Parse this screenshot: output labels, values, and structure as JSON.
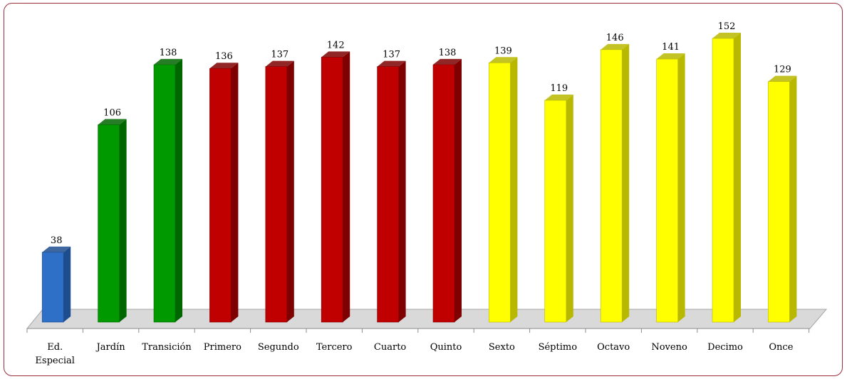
{
  "chart_data": {
    "type": "bar",
    "title": "",
    "xlabel": "",
    "ylabel": "",
    "categories": [
      "Ed. Especial",
      "Jardín",
      "Transición",
      "Primero",
      "Segundo",
      "Tercero",
      "Cuarto",
      "Quinto",
      "Sexto",
      "Séptimo",
      "Octavo",
      "Noveno",
      "Decimo",
      "Once"
    ],
    "category_lines": [
      [
        "Ed.",
        "Especial"
      ],
      [
        "Jardín"
      ],
      [
        "Transición"
      ],
      [
        "Primero"
      ],
      [
        "Segundo"
      ],
      [
        "Tercero"
      ],
      [
        "Cuarto"
      ],
      [
        "Quinto"
      ],
      [
        "Sexto"
      ],
      [
        "Séptimo"
      ],
      [
        "Octavo"
      ],
      [
        "Noveno"
      ],
      [
        "Decimo"
      ],
      [
        "Once"
      ]
    ],
    "values": [
      38,
      106,
      138,
      136,
      137,
      142,
      137,
      138,
      139,
      119,
      146,
      141,
      152,
      129
    ],
    "ylim": [
      0,
      160
    ],
    "grid": false,
    "legend": "none",
    "data_labels": true,
    "bar_colors": [
      "#2e6fc7",
      "#009a00",
      "#009a00",
      "#c00000",
      "#c00000",
      "#c00000",
      "#c00000",
      "#c00000",
      "#ffff00",
      "#ffff00",
      "#ffff00",
      "#ffff00",
      "#ffff00",
      "#ffff00"
    ],
    "bar_side_colors": [
      "#1d4d8f",
      "#006600",
      "#006600",
      "#7e0000",
      "#7e0000",
      "#7e0000",
      "#7e0000",
      "#7e0000",
      "#b8b800",
      "#b8b800",
      "#b8b800",
      "#b8b800",
      "#b8b800",
      "#b8b800"
    ],
    "frame_color": "#9b2d3c"
  }
}
